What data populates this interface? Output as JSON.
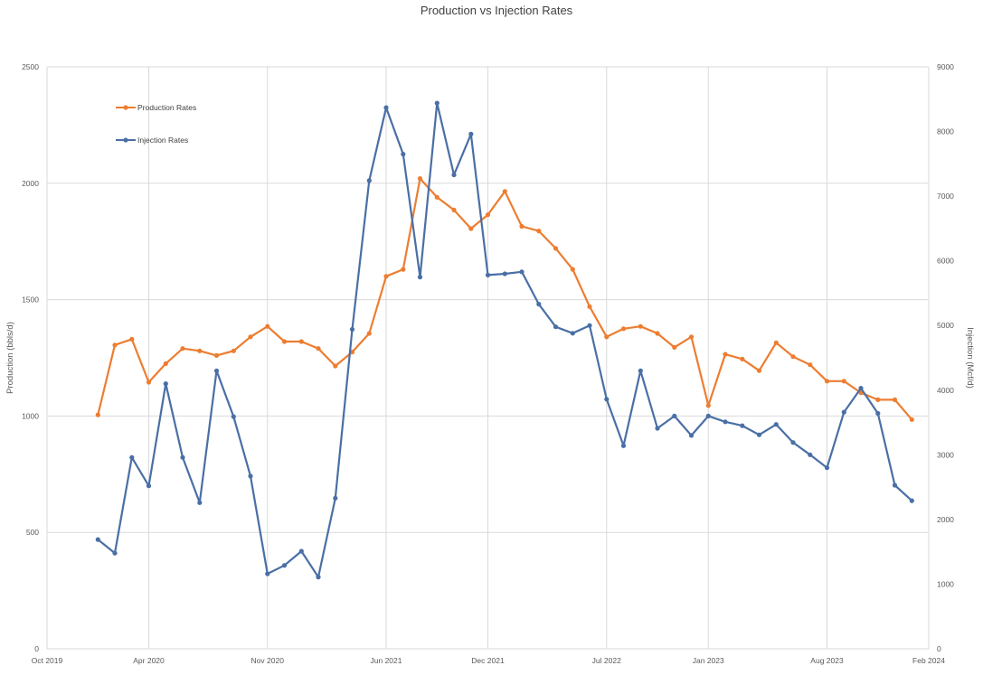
{
  "chart_data": {
    "type": "line",
    "title": "Production vs Injection Rates",
    "x_axis": {
      "ticks": [
        "Oct 2019",
        "Apr 2020",
        "Nov 2020",
        "Jun 2021",
        "Dec 2021",
        "Jul 2022",
        "Jan 2023",
        "Aug 2023",
        "Feb 2024"
      ]
    },
    "y_left": {
      "label": "Production (bbls/d)",
      "range": [
        0,
        2500
      ],
      "ticks": [
        "0",
        "500",
        "1000",
        "1500",
        "2000",
        "2500"
      ]
    },
    "y_right": {
      "label": "Injection (Mcf/d)",
      "range": [
        0,
        9000
      ],
      "ticks": [
        "0",
        "1000",
        "2000",
        "3000",
        "4000",
        "5000",
        "6000",
        "7000",
        "8000",
        "9000"
      ]
    },
    "grid": true,
    "legend_position": "top-left",
    "x": [
      "2020-01",
      "2020-02",
      "2020-03",
      "2020-04",
      "2020-05",
      "2020-06",
      "2020-07",
      "2020-08",
      "2020-09",
      "2020-10",
      "2020-11",
      "2020-12",
      "2021-01",
      "2021-02",
      "2021-03",
      "2021-04",
      "2021-05",
      "2021-06",
      "2021-07",
      "2021-08",
      "2021-09",
      "2021-10",
      "2021-11",
      "2021-12",
      "2022-01",
      "2022-02",
      "2022-03",
      "2022-04",
      "2022-05",
      "2022-06",
      "2022-07",
      "2022-08",
      "2022-09",
      "2022-10",
      "2022-11",
      "2022-12",
      "2023-01",
      "2023-02",
      "2023-03",
      "2023-04",
      "2023-05",
      "2023-06",
      "2023-07",
      "2023-08",
      "2023-09",
      "2023-10",
      "2023-11",
      "2023-12",
      "2024-01"
    ],
    "series": [
      {
        "name": "Production Rates",
        "axis": "left",
        "color": "#ED7D31",
        "values": [
          1005,
          1305,
          1330,
          1145,
          1225,
          1290,
          1280,
          1260,
          1280,
          1340,
          1385,
          1320,
          1320,
          1290,
          1215,
          1275,
          1355,
          1600,
          1630,
          2020,
          1940,
          1885,
          1805,
          1865,
          1965,
          1815,
          1795,
          1720,
          1630,
          1470,
          1340,
          1375,
          1385,
          1355,
          1295,
          1340,
          1045,
          1265,
          1245,
          1195,
          1315,
          1255,
          1220,
          1150,
          1150,
          1100,
          1070,
          1070,
          985
        ]
      },
      {
        "name": "Injection Rates",
        "axis": "right",
        "color": "#4A6FA5",
        "values": [
          1690,
          1480,
          2960,
          2520,
          4100,
          2960,
          2260,
          4300,
          3590,
          2670,
          1160,
          1290,
          1510,
          1110,
          2330,
          4940,
          7240,
          8370,
          7650,
          5750,
          8440,
          7330,
          7960,
          5780,
          5800,
          5830,
          5330,
          4980,
          4880,
          5000,
          3860,
          3140,
          4300,
          3410,
          3600,
          3300,
          3600,
          3510,
          3450,
          3310,
          3470,
          3190,
          3000,
          2800,
          3660,
          4030,
          3640,
          2530,
          2290
        ]
      }
    ]
  }
}
